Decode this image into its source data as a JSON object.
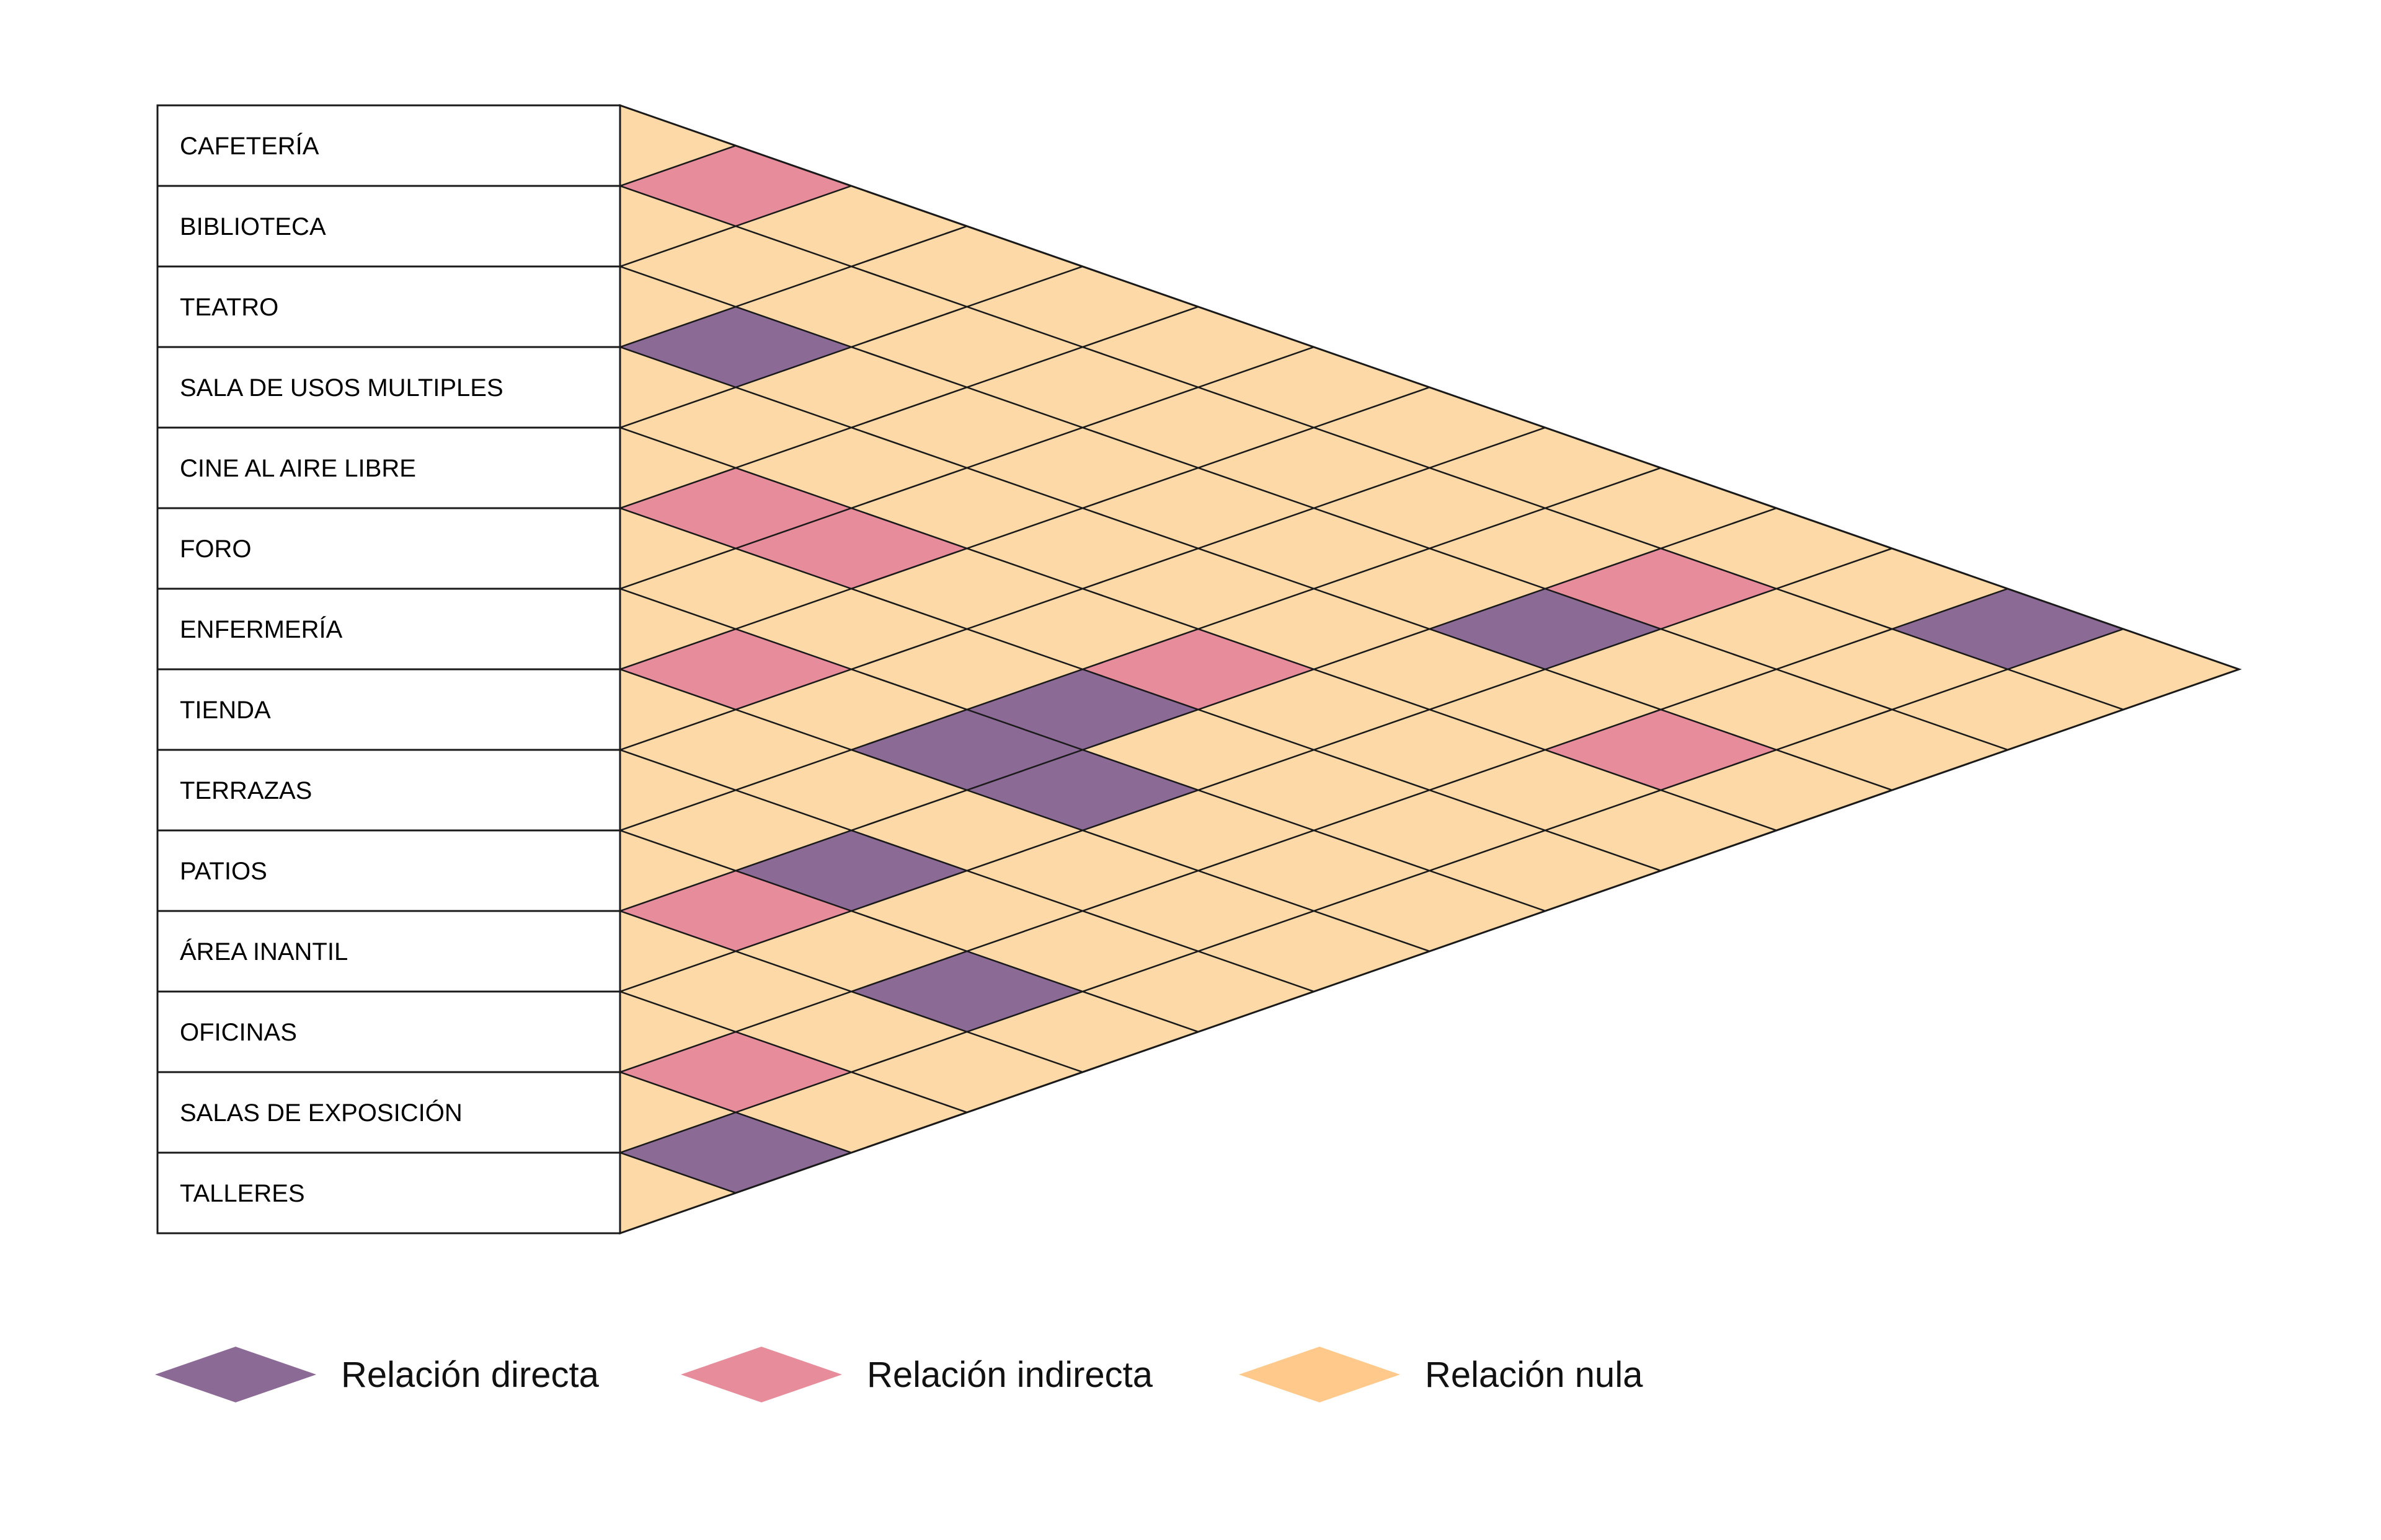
{
  "spaces": [
    "CAFETERÍA",
    "BIBLIOTECA",
    "TEATRO",
    "SALA DE USOS MULTIPLES",
    "CINE AL AIRE LIBRE",
    "FORO",
    "ENFERMERÍA",
    "TIENDA",
    "TERRAZAS",
    "PATIOS",
    "ÁREA INANTIL",
    "OFICINAS",
    "SALAS DE EXPOSICIÓN",
    "TALLERES"
  ],
  "relations": [
    {
      "a": 1,
      "b": 2,
      "type": "indirecta"
    },
    {
      "a": 3,
      "b": 4,
      "type": "directa"
    },
    {
      "a": 5,
      "b": 6,
      "type": "indirecta"
    },
    {
      "a": 5,
      "b": 7,
      "type": "indirecta"
    },
    {
      "a": 2,
      "b": 11,
      "type": "indirecta"
    },
    {
      "a": 1,
      "b": 13,
      "type": "directa"
    },
    {
      "a": 3,
      "b": 11,
      "type": "directa"
    },
    {
      "a": 7,
      "b": 8,
      "type": "indirecta"
    },
    {
      "a": 5,
      "b": 10,
      "type": "indirecta"
    },
    {
      "a": 6,
      "b": 10,
      "type": "directa"
    },
    {
      "a": 7,
      "b": 10,
      "type": "directa"
    },
    {
      "a": 7,
      "b": 11,
      "type": "directa"
    },
    {
      "a": 4,
      "b": 13,
      "type": "indirecta"
    },
    {
      "a": 9,
      "b": 11,
      "type": "directa"
    },
    {
      "a": 10,
      "b": 11,
      "type": "indirecta"
    },
    {
      "a": 10,
      "b": 13,
      "type": "directa"
    },
    {
      "a": 12,
      "b": 13,
      "type": "indirecta"
    },
    {
      "a": 13,
      "b": 14,
      "type": "directa"
    }
  ],
  "legend": [
    {
      "label": "Relación directa",
      "type": "directa"
    },
    {
      "label": "Relación indirecta",
      "type": "indirecta"
    },
    {
      "label": "Relación nula",
      "type": "nula"
    }
  ],
  "colors": {
    "directa": "#8c6a96",
    "indirecta": "#e78c9a",
    "nula": "#fdd9a7",
    "legend_nula": "#fec98a",
    "line": "#1a1a1a"
  }
}
